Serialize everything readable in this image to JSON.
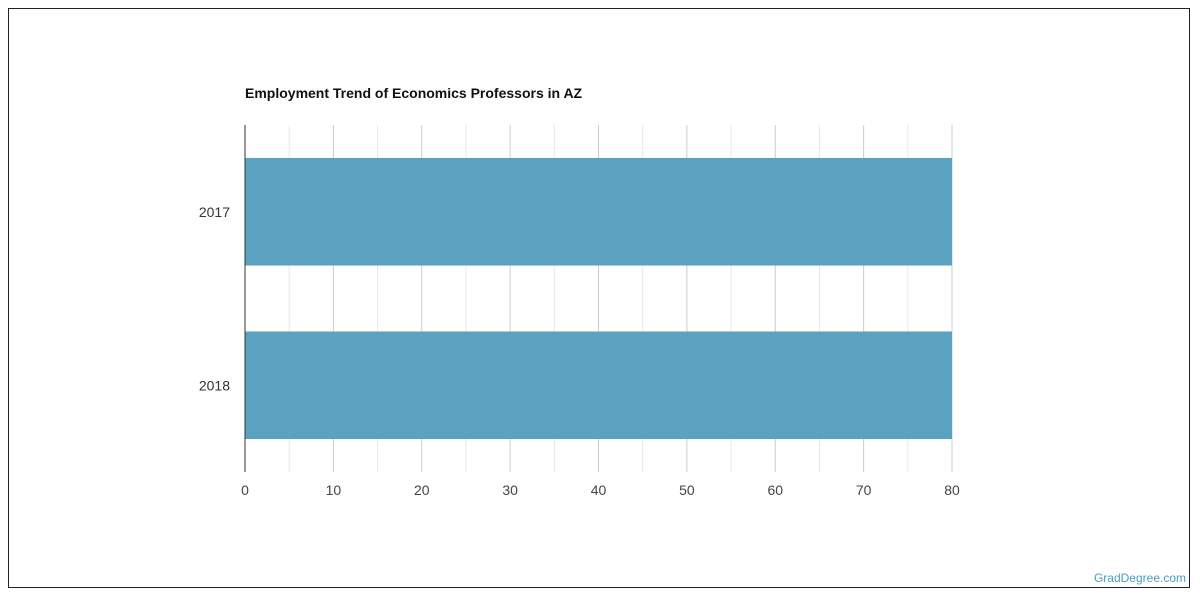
{
  "chart_data": {
    "type": "bar",
    "orientation": "horizontal",
    "title": "Employment Trend of Economics Professors in AZ",
    "categories": [
      "2017",
      "2018"
    ],
    "values": [
      80,
      80
    ],
    "xlabel": "",
    "ylabel": "",
    "xlim": [
      0,
      80
    ],
    "x_ticks": [
      0,
      10,
      20,
      30,
      40,
      50,
      60,
      70,
      80
    ],
    "grid": true,
    "legend": "none",
    "bar_color": "#5ba2c0"
  },
  "watermark": "GradDegree.com"
}
